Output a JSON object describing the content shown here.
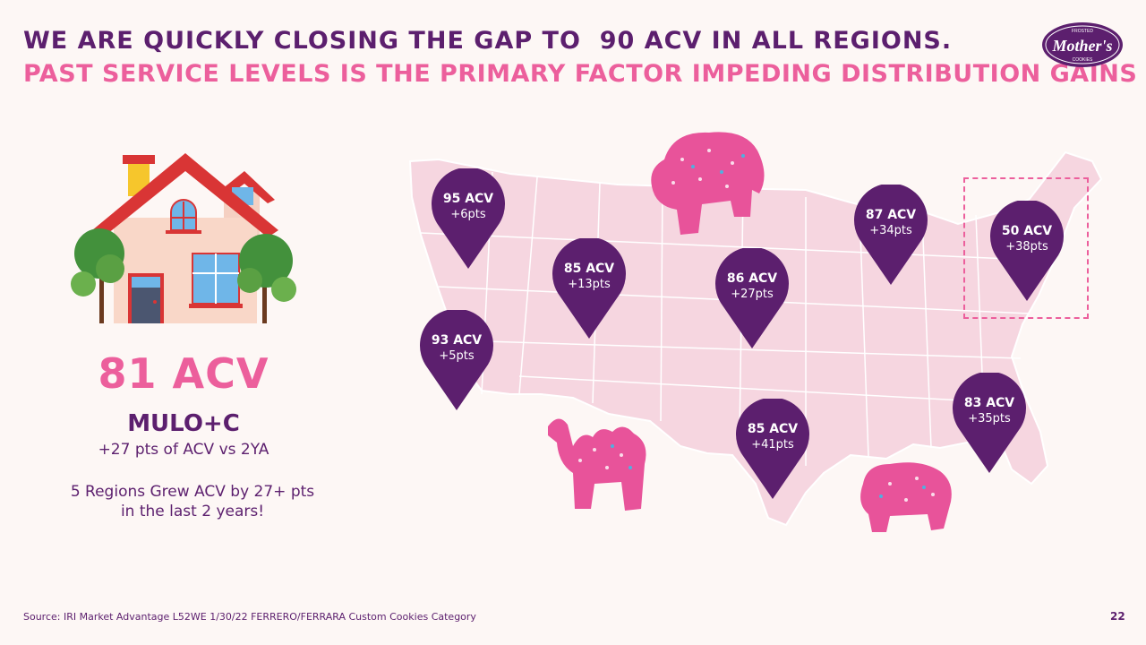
{
  "header": {
    "title_line1": "WE ARE QUICKLY CLOSING THE GAP TO  90 ACV IN ALL REGIONS.",
    "title_line2": "PAST SERVICE LEVELS IS THE PRIMARY FACTOR IMPEDING DISTRIBUTION GAINS"
  },
  "logo": {
    "text": "Mother's",
    "small_top": "FROSTED",
    "small_bottom": "COOKIES"
  },
  "summary": {
    "acv": "81 ACV",
    "market": "MULO+C",
    "change": "+27 pts of ACV vs 2YA",
    "note_line1": "5 Regions Grew ACV by 27+ pts",
    "note_line2": "in the last 2 years!"
  },
  "regions": [
    {
      "acv": "95 ACV",
      "pts": "+6pts"
    },
    {
      "acv": "93 ACV",
      "pts": "+5pts"
    },
    {
      "acv": "85 ACV",
      "pts": "+13pts"
    },
    {
      "acv": "86 ACV",
      "pts": "+27pts"
    },
    {
      "acv": "87 ACV",
      "pts": "+34pts"
    },
    {
      "acv": "50 ACV",
      "pts": "+38pts"
    },
    {
      "acv": "85 ACV",
      "pts": "+41pts"
    },
    {
      "acv": "83 ACV",
      "pts": "+35pts"
    }
  ],
  "footer": {
    "source": "Source: IRI Market Advantage L52WE 1/30/22 FERRERO/FERRARA Custom Cookies Category",
    "page_number": "22"
  },
  "colors": {
    "purple": "#5c1f6e",
    "pink": "#ec5f9c",
    "map": "#f6d6e0",
    "background": "#fdf7f5"
  }
}
